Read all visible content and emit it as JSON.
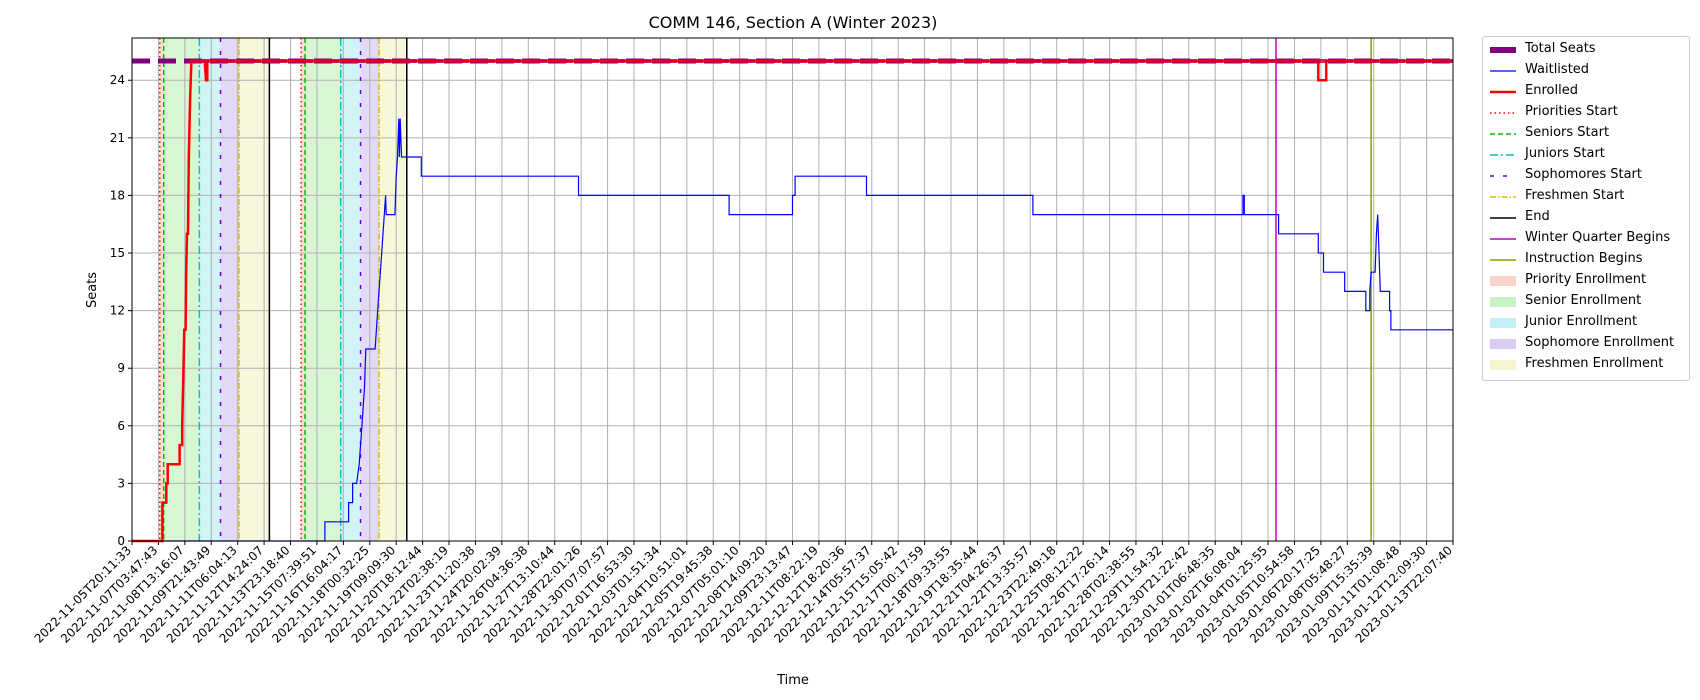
{
  "chart_data": {
    "type": "line",
    "title": "COMM 146, Section A (Winter 2023)",
    "xlabel": "Time",
    "ylabel": "Seats",
    "ylim": [
      0,
      26.2
    ],
    "yticks": [
      0,
      3,
      6,
      9,
      12,
      15,
      18,
      21,
      24
    ],
    "grid": true,
    "legend_position": "outside-right",
    "x_tick_labels": [
      "2022-11-05T20:11:33",
      "2022-11-07T03:47:43",
      "2022-11-08T13:16:07",
      "2022-11-09T21:43:49",
      "2022-11-11T06:04:13",
      "2022-11-12T14:24:07",
      "2022-11-13T23:18:40",
      "2022-11-15T07:39:51",
      "2022-11-16T16:04:17",
      "2022-11-18T00:32:25",
      "2022-11-19T09:09:30",
      "2022-11-20T18:12:44",
      "2022-11-22T02:38:19",
      "2022-11-23T11:20:38",
      "2022-11-24T20:02:39",
      "2022-11-26T04:36:38",
      "2022-11-27T13:10:44",
      "2022-11-28T22:01:26",
      "2022-11-30T07:07:57",
      "2022-12-01T16:53:30",
      "2022-12-03T01:51:34",
      "2022-12-04T10:51:01",
      "2022-12-05T19:45:38",
      "2022-12-07T05:01:10",
      "2022-12-08T14:09:20",
      "2022-12-09T23:13:47",
      "2022-12-11T08:22:19",
      "2022-12-12T18:20:36",
      "2022-12-14T05:57:37",
      "2022-12-15T15:05:42",
      "2022-12-17T00:17:59",
      "2022-12-18T09:33:55",
      "2022-12-19T18:35:44",
      "2022-12-21T04:26:37",
      "2022-12-22T13:35:57",
      "2022-12-23T22:49:18",
      "2022-12-25T08:12:22",
      "2022-12-26T17:26:14",
      "2022-12-28T02:38:55",
      "2022-12-29T11:54:32",
      "2022-12-30T21:22:42",
      "2023-01-01T06:48:35",
      "2023-01-02T16:08:04",
      "2023-01-04T01:25:55",
      "2023-01-05T10:54:58",
      "2023-01-06T20:17:25",
      "2023-01-08T05:48:27",
      "2023-01-09T15:35:39",
      "2023-01-11T01:08:48",
      "2023-01-12T12:09:30",
      "2023-01-13T22:07:40"
    ],
    "series": [
      {
        "name": "Total Seats",
        "color": "#800080",
        "style": "dashed-thick",
        "points": [
          [
            0,
            25
          ],
          [
            50,
            25
          ]
        ]
      },
      {
        "name": "Waitlisted",
        "color": "#0000ff",
        "style": "step",
        "points": [
          [
            0,
            0
          ],
          [
            5.5,
            0
          ],
          [
            5.5,
            0
          ],
          [
            7.3,
            0
          ],
          [
            7.3,
            1
          ],
          [
            8.2,
            1
          ],
          [
            8.2,
            2
          ],
          [
            8.35,
            2
          ],
          [
            8.35,
            3
          ],
          [
            8.5,
            3
          ],
          [
            8.6,
            4
          ],
          [
            8.7,
            6
          ],
          [
            8.8,
            8
          ],
          [
            8.85,
            10
          ],
          [
            9.2,
            10
          ],
          [
            9.25,
            11
          ],
          [
            9.35,
            13
          ],
          [
            9.45,
            15
          ],
          [
            9.55,
            17
          ],
          [
            9.6,
            18
          ],
          [
            9.62,
            17
          ],
          [
            9.95,
            17
          ],
          [
            10.0,
            19
          ],
          [
            10.05,
            20
          ],
          [
            10.1,
            22
          ],
          [
            10.12,
            20
          ],
          [
            10.15,
            22
          ],
          [
            10.2,
            20
          ],
          [
            10.95,
            20
          ],
          [
            10.95,
            19
          ],
          [
            16.9,
            19
          ],
          [
            16.9,
            18
          ],
          [
            22.6,
            18
          ],
          [
            22.6,
            17
          ],
          [
            25.0,
            17
          ],
          [
            25.0,
            18
          ],
          [
            25.1,
            18
          ],
          [
            25.1,
            19
          ],
          [
            27.8,
            19
          ],
          [
            27.8,
            18
          ],
          [
            34.1,
            18
          ],
          [
            34.1,
            17
          ],
          [
            42.05,
            17
          ],
          [
            42.05,
            18
          ],
          [
            42.1,
            18
          ],
          [
            42.1,
            17
          ],
          [
            43.4,
            17
          ],
          [
            43.4,
            16
          ],
          [
            44.9,
            16
          ],
          [
            44.9,
            15
          ],
          [
            45.1,
            15
          ],
          [
            45.1,
            14
          ],
          [
            45.9,
            14
          ],
          [
            45.9,
            13
          ],
          [
            46.7,
            13
          ],
          [
            46.7,
            12
          ],
          [
            46.85,
            12
          ],
          [
            46.85,
            13
          ],
          [
            46.9,
            14
          ],
          [
            47.05,
            14
          ],
          [
            47.1,
            16
          ],
          [
            47.15,
            17
          ],
          [
            47.2,
            15
          ],
          [
            47.25,
            13
          ],
          [
            47.6,
            13
          ],
          [
            47.6,
            12
          ],
          [
            47.65,
            12
          ],
          [
            47.65,
            11
          ],
          [
            50,
            11
          ]
        ]
      },
      {
        "name": "Enrolled",
        "color": "#ff0000",
        "style": "step-thick",
        "points": [
          [
            0,
            0
          ],
          [
            1.15,
            0
          ],
          [
            1.15,
            2
          ],
          [
            1.3,
            2
          ],
          [
            1.3,
            3
          ],
          [
            1.35,
            3
          ],
          [
            1.35,
            4
          ],
          [
            1.8,
            4
          ],
          [
            1.8,
            5
          ],
          [
            1.9,
            5
          ],
          [
            1.9,
            6
          ],
          [
            1.95,
            9
          ],
          [
            1.98,
            11
          ],
          [
            2.03,
            11
          ],
          [
            2.05,
            14
          ],
          [
            2.08,
            16
          ],
          [
            2.12,
            16
          ],
          [
            2.15,
            20
          ],
          [
            2.2,
            23
          ],
          [
            2.25,
            25
          ],
          [
            2.75,
            25
          ],
          [
            2.8,
            24
          ],
          [
            2.85,
            24
          ],
          [
            2.85,
            25
          ],
          [
            44.9,
            25
          ],
          [
            44.9,
            24
          ],
          [
            45.2,
            24
          ],
          [
            45.2,
            25
          ],
          [
            50,
            25
          ]
        ]
      }
    ],
    "markers": [
      {
        "name": "Priorities Start",
        "color": "#ff0000",
        "style": "dotted",
        "x": [
          1.05,
          6.4
        ]
      },
      {
        "name": "Seniors Start",
        "color": "#00bb00",
        "style": "dashed",
        "x": [
          1.2,
          6.55
        ]
      },
      {
        "name": "Juniors Start",
        "color": "#00bfbf",
        "style": "dashdot",
        "x": [
          2.55,
          7.9
        ]
      },
      {
        "name": "Sophomores Start",
        "color": "#6a00d8",
        "style": "loosedash",
        "x": [
          3.35,
          8.65
        ]
      },
      {
        "name": "Freshmen Start",
        "color": "#d8c000",
        "style": "dashdot",
        "x": [
          4.05,
          9.35
        ]
      },
      {
        "name": "End",
        "color": "#000000",
        "style": "solid",
        "x": [
          5.2,
          10.4
        ]
      },
      {
        "name": "Winter Quarter Begins",
        "color": "#c000c0",
        "style": "solid",
        "x": [
          43.3
        ]
      },
      {
        "name": "Instruction Begins",
        "color": "#7aa600",
        "style": "solid",
        "x": [
          46.9
        ]
      }
    ],
    "bands": [
      {
        "name": "Priority Enrollment",
        "color": "#f5b7a8",
        "ranges": [
          [
            1.05,
            1.2
          ],
          [
            6.4,
            6.55
          ]
        ]
      },
      {
        "name": "Senior Enrollment",
        "color": "#a8e8a0",
        "ranges": [
          [
            1.2,
            2.55
          ],
          [
            6.55,
            7.9
          ]
        ]
      },
      {
        "name": "Junior Enrollment",
        "color": "#9ae6ec",
        "ranges": [
          [
            2.55,
            3.35
          ],
          [
            7.9,
            8.65
          ]
        ]
      },
      {
        "name": "Sophomore Enrollment",
        "color": "#c2a8ec",
        "ranges": [
          [
            3.35,
            4.05
          ],
          [
            8.65,
            9.35
          ]
        ]
      },
      {
        "name": "Freshmen Enrollment",
        "color": "#eef0b0",
        "ranges": [
          [
            4.05,
            5.2
          ],
          [
            9.35,
            10.4
          ]
        ]
      }
    ]
  },
  "legend": {
    "items": [
      {
        "label": "Total Seats",
        "kind": "line",
        "color": "#800080",
        "dash": "",
        "width": 6
      },
      {
        "label": "Waitlisted",
        "kind": "line",
        "color": "#0000ff",
        "dash": "",
        "width": 1.3
      },
      {
        "label": "Enrolled",
        "kind": "line",
        "color": "#ff0000",
        "dash": "",
        "width": 2.5
      },
      {
        "label": "Priorities Start",
        "kind": "line",
        "color": "#ff0000",
        "dash": "1.5,3",
        "width": 1.5
      },
      {
        "label": "Seniors Start",
        "kind": "line",
        "color": "#00bb00",
        "dash": "5,3",
        "width": 1.5
      },
      {
        "label": "Juniors Start",
        "kind": "line",
        "color": "#00bfbf",
        "dash": "8,3,2,3",
        "width": 1.5
      },
      {
        "label": "Sophomores Start",
        "kind": "line",
        "color": "#6a00d8",
        "dash": "4,9",
        "width": 1.5
      },
      {
        "label": "Freshmen Start",
        "kind": "line",
        "color": "#d8c000",
        "dash": "6,2,1.5,2",
        "width": 1.5
      },
      {
        "label": "End",
        "kind": "line",
        "color": "#000000",
        "dash": "",
        "width": 1.5
      },
      {
        "label": "Winter Quarter Begins",
        "kind": "line",
        "color": "#c000c0",
        "dash": "",
        "width": 1.5
      },
      {
        "label": "Instruction Begins",
        "kind": "line",
        "color": "#7aa600",
        "dash": "",
        "width": 1.5
      },
      {
        "label": "Priority Enrollment",
        "kind": "patch",
        "color": "#f5b7a8"
      },
      {
        "label": "Senior Enrollment",
        "kind": "patch",
        "color": "#a8e8a0"
      },
      {
        "label": "Junior Enrollment",
        "kind": "patch",
        "color": "#9ae6ec"
      },
      {
        "label": "Sophomore Enrollment",
        "kind": "patch",
        "color": "#c2a8ec"
      },
      {
        "label": "Freshmen Enrollment",
        "kind": "patch",
        "color": "#eef0b0"
      }
    ]
  }
}
